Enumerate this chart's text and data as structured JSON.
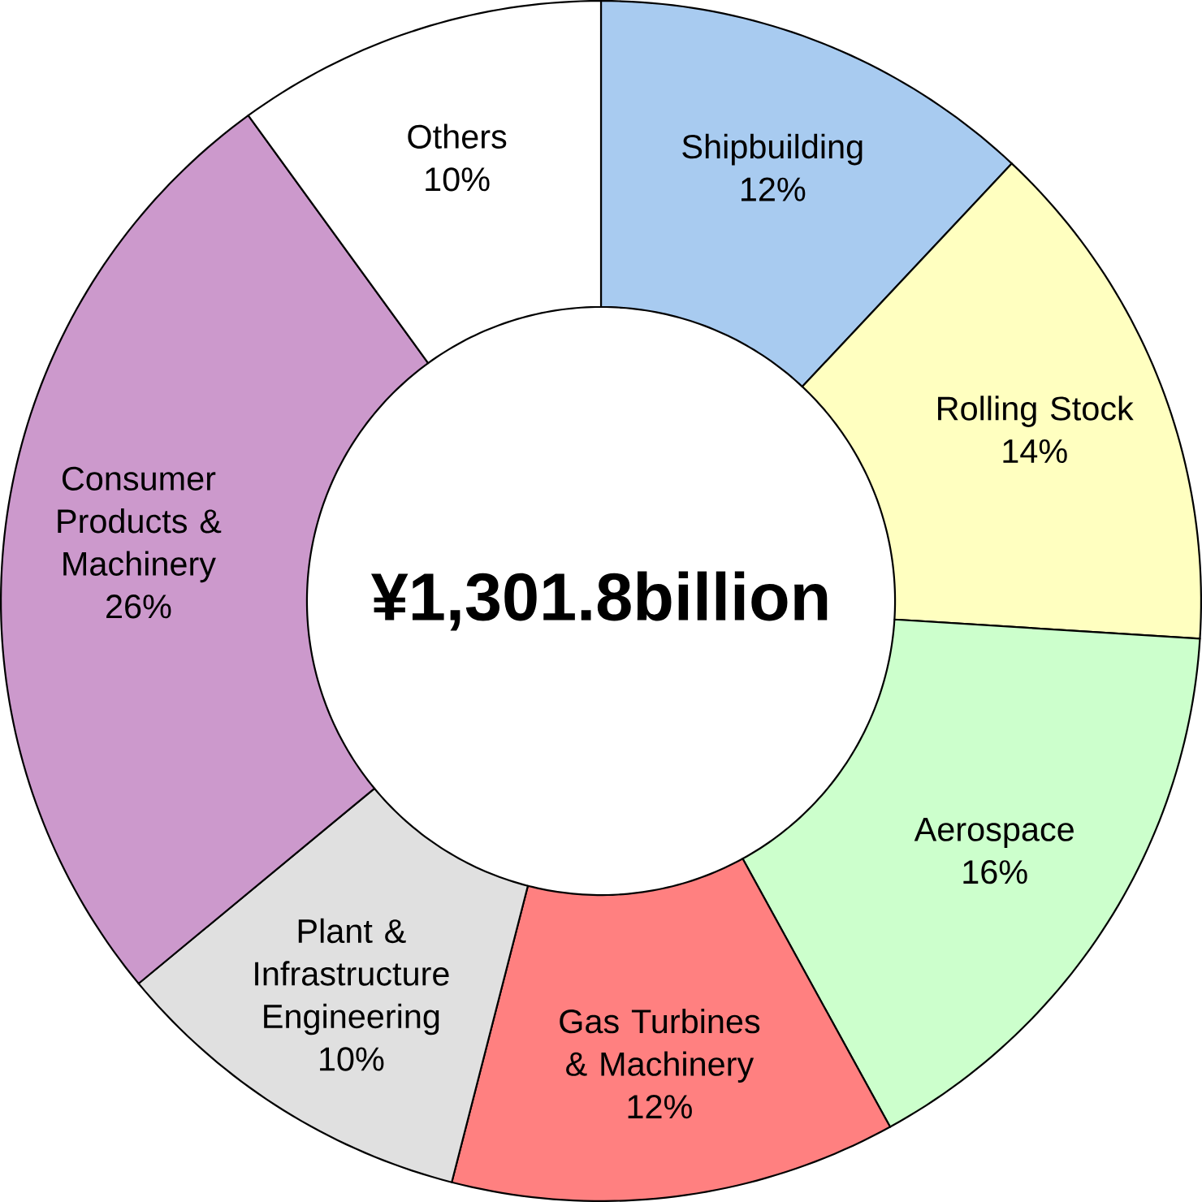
{
  "chart_data": {
    "type": "donut",
    "categories": [
      "Shipbuilding",
      "Rolling Stock",
      "Aerospace",
      "Gas Turbines & Machinery",
      "Plant & Infrastructure Engineering",
      "Consumer Products & Machinery",
      "Others"
    ],
    "values": [
      12,
      14,
      16,
      12,
      10,
      26,
      10
    ],
    "value_labels": [
      "12%",
      "14%",
      "16%",
      "12%",
      "10%",
      "26%",
      "10%"
    ],
    "colors": [
      "#a8cbf0",
      "#ffffc0",
      "#ccffcc",
      "#ff8080",
      "#e0e0e0",
      "#cc99cc",
      "#ffffff"
    ],
    "annotations": [
      "¥1,301.8billion"
    ]
  }
}
